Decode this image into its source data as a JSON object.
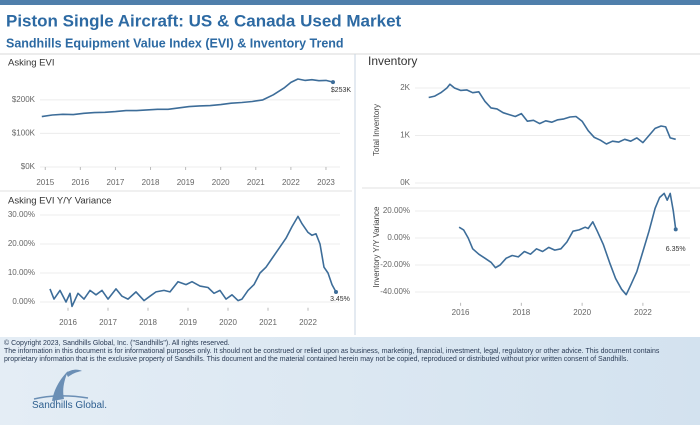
{
  "header": {
    "title": "Piston Single Aircraft:  US & Canada Used Market",
    "subtitle": "Sandhills Equipment Value Index (EVI) & Inventory Trend"
  },
  "footer": {
    "copyright": "© Copyright 2023, Sandhills Global, Inc. (\"Sandhills\"). All rights reserved.",
    "disclaimer": "The information in this document is for informational purposes only.  It should not be construed or relied upon as business, marketing, financial, investment, legal, regulatory or other advice. This document contains proprietary information that is the exclusive property of Sandhills. This document and the material contained herein may not be copied, reproduced or distributed without prior written consent of Sandhills.",
    "logo": "Sandhills Global."
  },
  "chart_data": [
    {
      "type": "line",
      "title": "Asking EVI",
      "color": "#3d6d99",
      "grid": true,
      "x": [
        2014.9,
        2015.2,
        2015.5,
        2015.8,
        2016.1,
        2016.4,
        2016.7,
        2017.0,
        2017.3,
        2017.6,
        2017.9,
        2018.2,
        2018.5,
        2018.8,
        2019.1,
        2019.4,
        2019.7,
        2020.0,
        2020.3,
        2020.6,
        2020.9,
        2021.2,
        2021.5,
        2021.8,
        2022.0,
        2022.2,
        2022.4,
        2022.6,
        2022.8,
        2023.0,
        2023.2
      ],
      "values": [
        150000,
        155000,
        157000,
        156000,
        160000,
        162000,
        163000,
        165000,
        168000,
        168000,
        170000,
        172000,
        172000,
        176000,
        180000,
        182000,
        183000,
        186000,
        190000,
        192000,
        195000,
        200000,
        215000,
        235000,
        252000,
        262000,
        258000,
        260000,
        257000,
        258000,
        253000
      ],
      "value_labels": [
        null,
        null,
        null,
        null,
        null,
        null,
        null,
        null,
        null,
        null,
        null,
        null,
        null,
        null,
        null,
        null,
        null,
        null,
        null,
        null,
        null,
        null,
        null,
        null,
        null,
        null,
        null,
        null,
        null,
        null,
        "$253K"
      ],
      "xlim": [
        2014.85,
        2023.4
      ],
      "xticks": [
        2015,
        2016,
        2017,
        2018,
        2019,
        2020,
        2021,
        2022,
        2023
      ],
      "ylim": [
        0,
        280000
      ],
      "yticks": [
        {
          "value": 0,
          "label": "$0K"
        },
        {
          "value": 100000,
          "label": "$100K"
        },
        {
          "value": 200000,
          "label": "$200K"
        }
      ]
    },
    {
      "type": "line",
      "title": "Asking EVI Y/Y Variance",
      "color": "#3d6d99",
      "grid": true,
      "x": [
        2015.55,
        2015.65,
        2015.8,
        2015.95,
        2016.05,
        2016.1,
        2016.25,
        2016.4,
        2016.55,
        2016.7,
        2016.85,
        2017.0,
        2017.2,
        2017.35,
        2017.5,
        2017.7,
        2017.9,
        2018.05,
        2018.2,
        2018.4,
        2018.55,
        2018.75,
        2018.95,
        2019.1,
        2019.3,
        2019.5,
        2019.65,
        2019.8,
        2019.95,
        2020.1,
        2020.25,
        2020.35,
        2020.5,
        2020.65,
        2020.8,
        2020.95,
        2021.0,
        2021.1,
        2021.25,
        2021.45,
        2021.6,
        2021.75,
        2021.85,
        2022.0,
        2022.1,
        2022.2,
        2022.3,
        2022.4,
        2022.5,
        2022.6,
        2022.7
      ],
      "values": [
        4.5,
        1,
        4,
        0,
        3,
        -1.5,
        3,
        1,
        4,
        2.5,
        4,
        1,
        4.5,
        2,
        1,
        3.5,
        0.5,
        2,
        3.5,
        4,
        3.5,
        7,
        6,
        7,
        5.5,
        5,
        3,
        4,
        1,
        2.5,
        0.5,
        1,
        4,
        6,
        10,
        12,
        13,
        15,
        18,
        22,
        26,
        29.5,
        27,
        24,
        23,
        23.5,
        20,
        12,
        10,
        6,
        3.45
      ],
      "value_labels": [
        null,
        null,
        null,
        null,
        null,
        null,
        null,
        null,
        null,
        null,
        null,
        null,
        null,
        null,
        null,
        null,
        null,
        null,
        null,
        null,
        null,
        null,
        null,
        null,
        null,
        null,
        null,
        null,
        null,
        null,
        null,
        null,
        null,
        null,
        null,
        null,
        null,
        null,
        null,
        null,
        null,
        null,
        null,
        null,
        null,
        null,
        null,
        null,
        null,
        null,
        "3.45%"
      ],
      "xlim": [
        2015.3,
        2022.8
      ],
      "xticks": [
        2016,
        2017,
        2018,
        2019,
        2020,
        2021,
        2022
      ],
      "ylim": [
        -2,
        31
      ],
      "yticks": [
        {
          "value": 0,
          "label": "0.00%"
        },
        {
          "value": 10,
          "label": "10.00%"
        },
        {
          "value": 20,
          "label": "20.00%"
        },
        {
          "value": 30,
          "label": "30.00%"
        }
      ]
    },
    {
      "type": "line",
      "title": "Inventory",
      "y_label": "Total Inventory",
      "color": "#3d6d99",
      "grid": true,
      "x": [
        2014.95,
        2015.15,
        2015.35,
        2015.55,
        2015.65,
        2015.8,
        2016.0,
        2016.2,
        2016.4,
        2016.6,
        2016.8,
        2017.0,
        2017.2,
        2017.4,
        2017.6,
        2017.8,
        2018.0,
        2018.2,
        2018.4,
        2018.6,
        2018.8,
        2019.0,
        2019.2,
        2019.4,
        2019.6,
        2019.8,
        2020.0,
        2020.2,
        2020.4,
        2020.6,
        2020.8,
        2021.0,
        2021.2,
        2021.4,
        2021.6,
        2021.8,
        2022.0,
        2022.2,
        2022.4,
        2022.6,
        2022.75,
        2022.9,
        2023.08
      ],
      "values": [
        1800,
        1830,
        1900,
        2000,
        2080,
        2000,
        1950,
        1960,
        1900,
        1920,
        1720,
        1580,
        1560,
        1480,
        1440,
        1400,
        1460,
        1300,
        1320,
        1250,
        1310,
        1280,
        1330,
        1350,
        1390,
        1400,
        1300,
        1100,
        960,
        900,
        820,
        880,
        860,
        920,
        880,
        950,
        850,
        1000,
        1150,
        1200,
        1180,
        950,
        920
      ],
      "xlim": [
        2014.5,
        2023.55
      ],
      "ylim": [
        0,
        2250
      ],
      "yticks": [
        {
          "value": 0,
          "label": "0K"
        },
        {
          "value": 1000,
          "label": "1K"
        },
        {
          "value": 2000,
          "label": "2K"
        }
      ]
    },
    {
      "type": "line",
      "y_label": "Inventory Y/Y Variance",
      "color": "#3d6d99",
      "grid": true,
      "x": [
        2015.95,
        2016.1,
        2016.25,
        2016.4,
        2016.6,
        2016.8,
        2017.0,
        2017.15,
        2017.3,
        2017.5,
        2017.7,
        2017.9,
        2018.1,
        2018.3,
        2018.5,
        2018.7,
        2018.9,
        2019.1,
        2019.3,
        2019.5,
        2019.7,
        2019.9,
        2020.1,
        2020.2,
        2020.35,
        2020.5,
        2020.7,
        2020.9,
        2021.1,
        2021.3,
        2021.45,
        2021.6,
        2021.8,
        2022.0,
        2022.2,
        2022.4,
        2022.55,
        2022.7,
        2022.8,
        2022.9,
        2023.0,
        2023.08
      ],
      "values": [
        8,
        6,
        0,
        -8,
        -12,
        -15,
        -18,
        -22,
        -20,
        -15,
        -13,
        -14,
        -10,
        -12,
        -8,
        -10,
        -7,
        -9,
        -8,
        -3,
        5,
        6,
        8,
        7,
        12,
        5,
        -5,
        -18,
        -30,
        -38,
        -42,
        -35,
        -25,
        -10,
        5,
        22,
        30,
        33,
        28,
        33,
        20,
        6.35
      ],
      "value_labels": [
        null,
        null,
        null,
        null,
        null,
        null,
        null,
        null,
        null,
        null,
        null,
        null,
        null,
        null,
        null,
        null,
        null,
        null,
        null,
        null,
        null,
        null,
        null,
        null,
        null,
        null,
        null,
        null,
        null,
        null,
        null,
        null,
        null,
        null,
        null,
        null,
        null,
        null,
        null,
        null,
        null,
        "6.35%"
      ],
      "xlim": [
        2014.5,
        2023.55
      ],
      "xticks": [
        2016,
        2018,
        2020,
        2022
      ],
      "ylim": [
        -48,
        35
      ],
      "yticks": [
        {
          "value": -40,
          "label": "-40.00%"
        },
        {
          "value": -20,
          "label": "-20.00%"
        },
        {
          "value": 0,
          "label": "0.00%"
        },
        {
          "value": 20,
          "label": "20.00%"
        }
      ]
    }
  ]
}
